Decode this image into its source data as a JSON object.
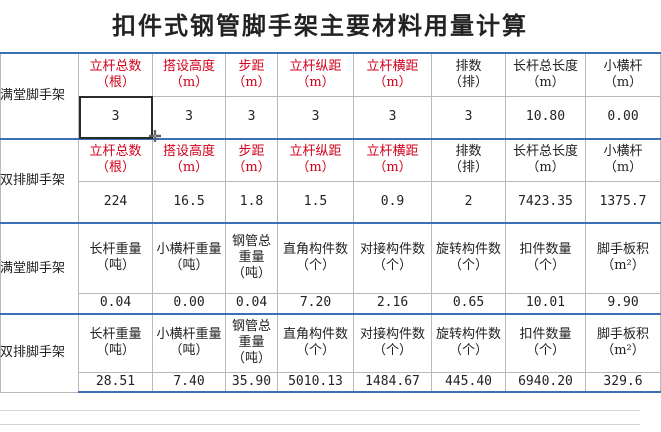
{
  "title": "扣件式钢管脚手架主要材料用量计算",
  "sections": [
    {
      "label": "满堂脚手架",
      "headers": [
        {
          "line1": "立杆总数",
          "line2": "（根）",
          "red": true
        },
        {
          "line1": "搭设高度",
          "line2": "（m）",
          "red": true
        },
        {
          "line1": "步距",
          "line2": "（m）",
          "red": true
        },
        {
          "line1": "立杆纵距",
          "line2": "（m）",
          "red": true
        },
        {
          "line1": "立杆横距",
          "line2": "（m）",
          "red": true
        },
        {
          "line1": "排数",
          "line2": "（排）",
          "red": false
        },
        {
          "line1": "长杆总长度",
          "line2": "（m）",
          "red": false
        },
        {
          "line1": "小横杆",
          "line2": "（m）",
          "red": false
        }
      ],
      "values": [
        "3",
        "3",
        "3",
        "3",
        "3",
        "3",
        "10.80",
        "0.00"
      ]
    },
    {
      "label": "双排脚手架",
      "headers": [
        {
          "line1": "立杆总数",
          "line2": "（根）",
          "red": true
        },
        {
          "line1": "搭设高度",
          "line2": "（m）",
          "red": true
        },
        {
          "line1": "步距",
          "line2": "（m）",
          "red": true
        },
        {
          "line1": "立杆纵距",
          "line2": "（m）",
          "red": true
        },
        {
          "line1": "立杆横距",
          "line2": "（m）",
          "red": true
        },
        {
          "line1": "排数",
          "line2": "（排）",
          "red": false
        },
        {
          "line1": "长杆总长度",
          "line2": "（m）",
          "red": false
        },
        {
          "line1": "小横杆",
          "line2": "（m）",
          "red": false
        }
      ],
      "values": [
        "224",
        "16.5",
        "1.8",
        "1.5",
        "0.9",
        "2",
        "7423.35",
        "1375.7"
      ]
    },
    {
      "label": "满堂脚手架",
      "headers": [
        {
          "line1": "长杆重量",
          "line2": "（吨）"
        },
        {
          "line1": "小横杆重量",
          "line2": "（吨）"
        },
        {
          "line1": "钢管总重量",
          "line2": "（吨）"
        },
        {
          "line1": "直角构件数",
          "line2": "（个）"
        },
        {
          "line1": "对接构件数",
          "line2": "（个）"
        },
        {
          "line1": "旋转构件数",
          "line2": "（个）"
        },
        {
          "line1": "扣件数量",
          "line2": "（个）"
        },
        {
          "line1": "脚手板积",
          "line2": "（m²）"
        }
      ],
      "values": [
        "0.04",
        "0.00",
        "0.04",
        "7.20",
        "2.16",
        "0.65",
        "10.01",
        "9.90"
      ]
    },
    {
      "label": "双排脚手架",
      "headers": [
        {
          "line1": "长杆重量",
          "line2": "（吨）"
        },
        {
          "line1": "小横杆重量",
          "line2": "（吨）"
        },
        {
          "line1": "钢管总重量",
          "line2": "（吨）"
        },
        {
          "line1": "直角构件数",
          "line2": "（个）"
        },
        {
          "line1": "对接构件数",
          "line2": "（个）"
        },
        {
          "line1": "旋转构件数",
          "line2": "（个）"
        },
        {
          "line1": "扣件数量",
          "line2": "（个）"
        },
        {
          "line1": "脚手板积",
          "line2": "（m²）"
        }
      ],
      "values": [
        "28.51",
        "7.40",
        "35.90",
        "5010.13",
        "1484.67",
        "445.40",
        "6940.20",
        "329.6"
      ]
    }
  ],
  "colors": {
    "input_header": "#d0021b",
    "section_border": "#3b6fb6"
  }
}
